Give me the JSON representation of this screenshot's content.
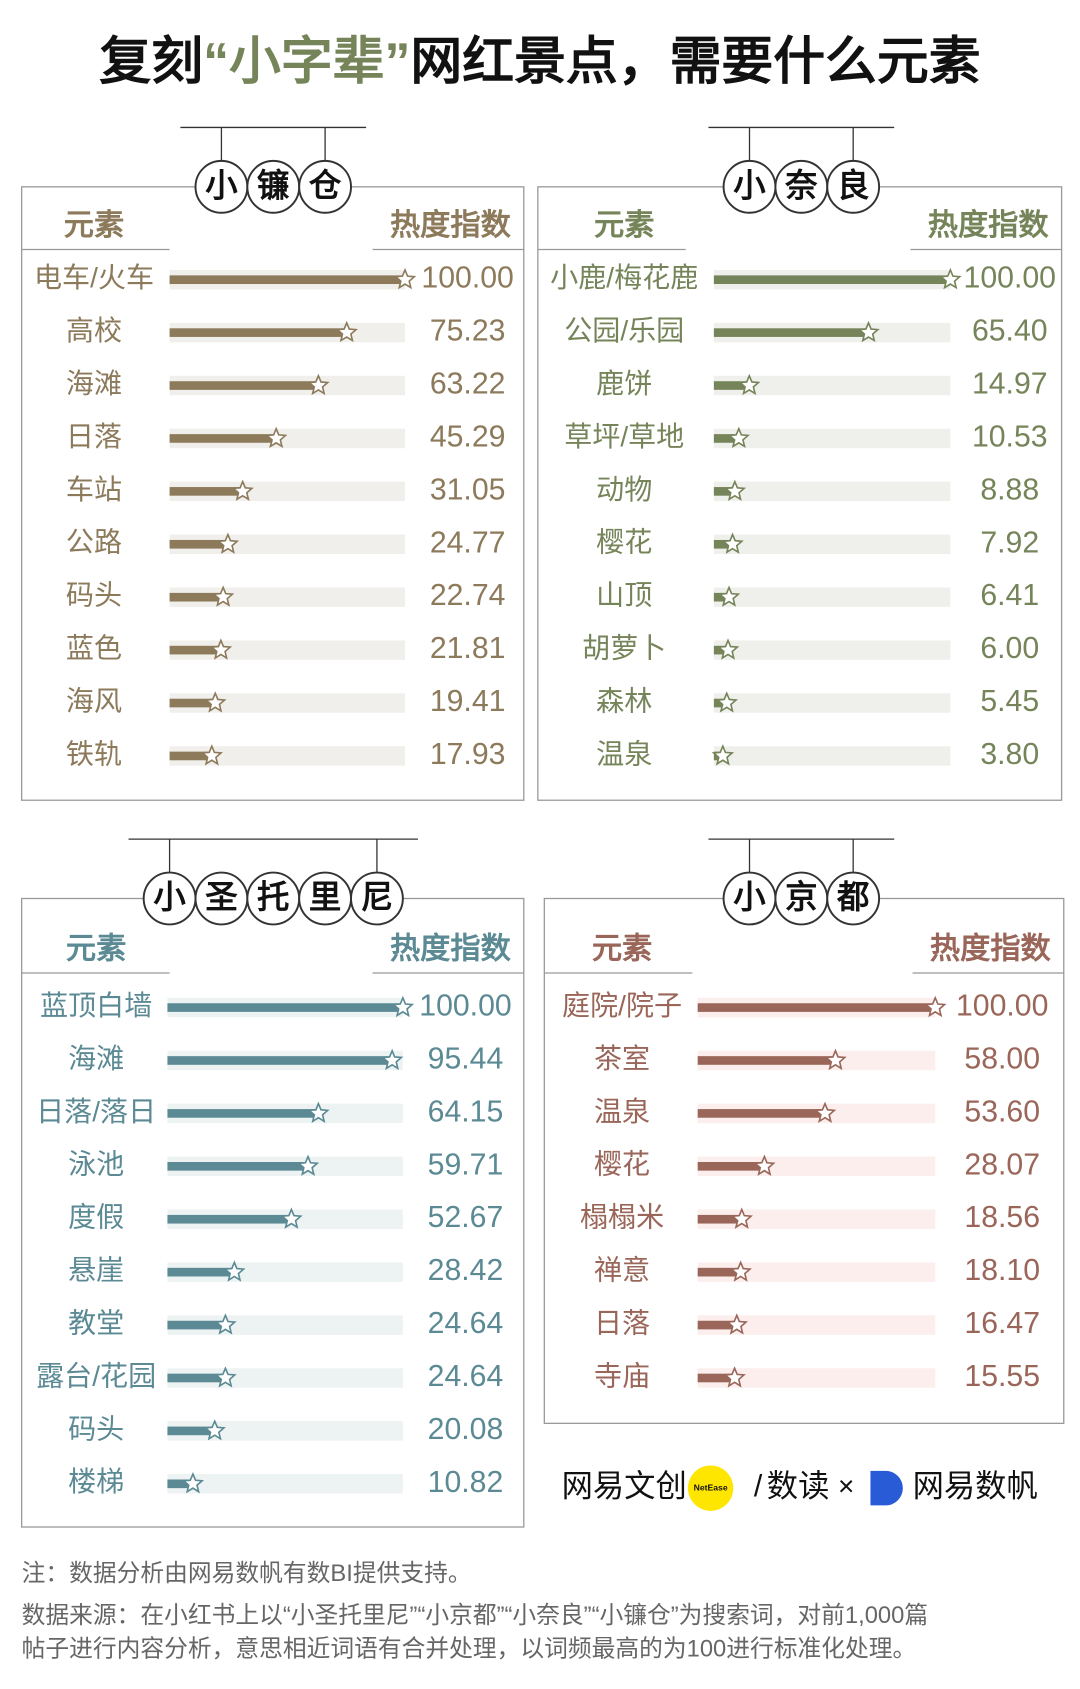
{
  "title": [
    "复刻",
    "“小字辈”",
    "网红景点，需要什么元素"
  ],
  "chart_data": [
    {
      "type": "bar",
      "orientation": "horizontal",
      "title": "小镰仓",
      "category_label": "元素",
      "value_label": "热度指数",
      "color": "#8c7a5b",
      "track_color": "#f1efeb",
      "xlim": [
        0,
        100
      ],
      "categories": [
        "电车/火车",
        "高校",
        "海滩",
        "日落",
        "车站",
        "公路",
        "码头",
        "蓝色",
        "海风",
        "铁轨"
      ],
      "values": [
        100,
        75.23,
        63.22,
        45.29,
        31.05,
        24.77,
        22.74,
        21.81,
        19.41,
        17.93
      ],
      "value_labels": [
        "100.00",
        "75.23",
        "63.22",
        "45.29",
        "31.05",
        "24.77",
        "22.74",
        "21.81",
        "19.41",
        "17.93"
      ]
    },
    {
      "type": "bar",
      "orientation": "horizontal",
      "title": "小奈良",
      "category_label": "元素",
      "value_label": "热度指数",
      "color": "#76845a",
      "track_color": "#eff0eb",
      "xlim": [
        0,
        100
      ],
      "categories": [
        "小鹿/梅花鹿",
        "公园/乐园",
        "鹿饼",
        "草坪/草地",
        "动物",
        "樱花",
        "山顶",
        "胡萝卜",
        "森林",
        "温泉"
      ],
      "values": [
        100,
        65.4,
        14.97,
        10.53,
        8.88,
        7.92,
        6.41,
        6,
        5.45,
        3.8
      ],
      "value_labels": [
        "100.00",
        "65.40",
        "14.97",
        "10.53",
        "8.88",
        "7.92",
        "6.41",
        "6.00",
        "5.45",
        "3.80"
      ]
    },
    {
      "type": "bar",
      "orientation": "horizontal",
      "title": "小圣托里尼",
      "category_label": "元素",
      "value_label": "热度指数",
      "color": "#5b8a94",
      "track_color": "#edf2f3",
      "xlim": [
        0,
        100
      ],
      "categories": [
        "蓝顶白墙",
        "海滩",
        "日落/落日",
        "泳池",
        "度假",
        "悬崖",
        "教堂",
        "露台/花园",
        "码头",
        "楼梯"
      ],
      "values": [
        100,
        95.44,
        64.15,
        59.71,
        52.67,
        28.42,
        24.64,
        24.64,
        20.08,
        10.82
      ],
      "value_labels": [
        "100.00",
        "95.44",
        "64.15",
        "59.71",
        "52.67",
        "28.42",
        "24.64",
        "24.64",
        "20.08",
        "10.82"
      ]
    },
    {
      "type": "bar",
      "orientation": "horizontal",
      "title": "小京都",
      "category_label": "元素",
      "value_label": "热度指数",
      "color": "#9a6659",
      "track_color": "#fbeeec",
      "xlim": [
        0,
        100
      ],
      "categories": [
        "庭院/院子",
        "茶室",
        "温泉",
        "樱花",
        "榻榻米",
        "禅意",
        "日落",
        "寺庙"
      ],
      "values": [
        100,
        58,
        53.6,
        28.07,
        18.56,
        18.1,
        16.47,
        15.55
      ],
      "value_labels": [
        "100.00",
        "58.00",
        "53.60",
        "28.07",
        "18.56",
        "18.10",
        "16.47",
        "15.55"
      ]
    }
  ],
  "logos": [
    "网易文创",
    "NetEase",
    "/",
    "数读",
    "×",
    "网易数帆"
  ],
  "notes": {
    "note": "注：数据分析由网易数帆有数BI提供支持。",
    "source": [
      "数据来源：在小红书上以“小圣托里尼”“小京都”“小奈良”“小镰仓”为搜索词，对前1,000篇",
      "帖子进行内容分析，意思相近词语有合并处理，以词频最高的为100进行标准化处理。"
    ]
  }
}
